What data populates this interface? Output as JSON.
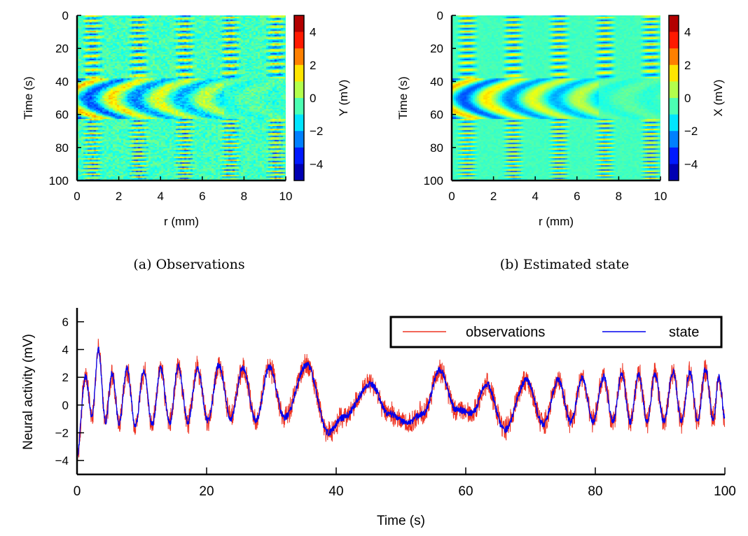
{
  "chart_data": [
    {
      "type": "heatmap",
      "caption": "(a) Observations",
      "xlabel": "r (mm)",
      "ylabel": "Time (s)",
      "colorbar_label": "Y (mV)",
      "xlim": [
        0,
        10
      ],
      "ylim": [
        100,
        0
      ],
      "clim": [
        -5,
        5
      ],
      "xticks": [
        "0",
        "2",
        "4",
        "6",
        "8",
        "10"
      ],
      "yticks": [
        "0",
        "20",
        "40",
        "60",
        "80",
        "100"
      ],
      "cticks": [
        "4",
        "2",
        "0",
        "−2",
        "−4"
      ],
      "colormap": "jet",
      "noisy": true
    },
    {
      "type": "heatmap",
      "caption": "(b) Estimated state",
      "xlabel": "r (mm)",
      "ylabel": "Time (s)",
      "colorbar_label": "X (mV)",
      "xlim": [
        0,
        10
      ],
      "ylim": [
        100,
        0
      ],
      "clim": [
        -5,
        5
      ],
      "xticks": [
        "0",
        "2",
        "4",
        "6",
        "8",
        "10"
      ],
      "yticks": [
        "0",
        "20",
        "40",
        "60",
        "80",
        "100"
      ],
      "cticks": [
        "4",
        "2",
        "0",
        "−2",
        "−4"
      ],
      "colormap": "jet",
      "noisy": false
    },
    {
      "type": "line",
      "xlabel": "Time (s)",
      "ylabel": "Neural activity (mV)",
      "xlim": [
        0,
        100
      ],
      "ylim": [
        -5,
        7
      ],
      "xticks": [
        "0",
        "20",
        "40",
        "60",
        "80",
        "100"
      ],
      "yticks": [
        "6",
        "4",
        "2",
        "0",
        "−2",
        "−4"
      ],
      "legend": {
        "placement": "top-right",
        "entries": [
          "observations",
          "state"
        ]
      },
      "series": [
        {
          "name": "observations",
          "color": "#ee3322",
          "noise_amplitude_mV": 1.0
        },
        {
          "name": "state",
          "color": "#0000ee"
        }
      ],
      "state_extrema": [
        [
          0,
          -3.6
        ],
        [
          1.3,
          2.1
        ],
        [
          2.3,
          -0.8
        ],
        [
          3.3,
          4.0
        ],
        [
          4.4,
          -1.2
        ],
        [
          5.4,
          2.3
        ],
        [
          6.5,
          -1.3
        ],
        [
          7.7,
          2.6
        ],
        [
          9.0,
          -1.5
        ],
        [
          10.3,
          2.5
        ],
        [
          11.6,
          -1.4
        ],
        [
          12.9,
          2.6
        ],
        [
          14.3,
          -1.3
        ],
        [
          15.6,
          2.8
        ],
        [
          17.1,
          -1.2
        ],
        [
          18.6,
          2.6
        ],
        [
          20.2,
          -1.2
        ],
        [
          21.9,
          2.9
        ],
        [
          23.7,
          -1.0
        ],
        [
          25.6,
          2.7
        ],
        [
          27.6,
          -1.1
        ],
        [
          29.7,
          2.7
        ],
        [
          32.0,
          -0.9
        ],
        [
          35.5,
          2.9
        ],
        [
          38.8,
          -2.0
        ],
        [
          41.0,
          -0.9
        ],
        [
          45.4,
          1.5
        ],
        [
          48.0,
          -0.6
        ],
        [
          51.0,
          -1.3
        ],
        [
          53.5,
          -0.6
        ],
        [
          56.0,
          2.5
        ],
        [
          58.5,
          -0.3
        ],
        [
          61.0,
          -0.6
        ],
        [
          63.2,
          1.5
        ],
        [
          66.0,
          -1.8
        ],
        [
          69.4,
          1.8
        ],
        [
          72.0,
          -1.4
        ],
        [
          74.3,
          1.8
        ],
        [
          76.2,
          -1.2
        ],
        [
          78.0,
          2.0
        ],
        [
          79.6,
          -1.2
        ],
        [
          81.3,
          2.0
        ],
        [
          82.7,
          -1.2
        ],
        [
          84.1,
          2.2
        ],
        [
          85.4,
          -1.2
        ],
        [
          86.7,
          2.2
        ],
        [
          88.0,
          -1.2
        ],
        [
          89.2,
          2.2
        ],
        [
          90.6,
          -1.2
        ],
        [
          92.0,
          2.4
        ],
        [
          93.3,
          -1.2
        ],
        [
          94.6,
          2.4
        ],
        [
          95.8,
          -1.2
        ],
        [
          97.0,
          2.6
        ],
        [
          98.2,
          -1.0
        ],
        [
          99.1,
          2.0
        ],
        [
          100,
          -1.0
        ]
      ]
    }
  ]
}
